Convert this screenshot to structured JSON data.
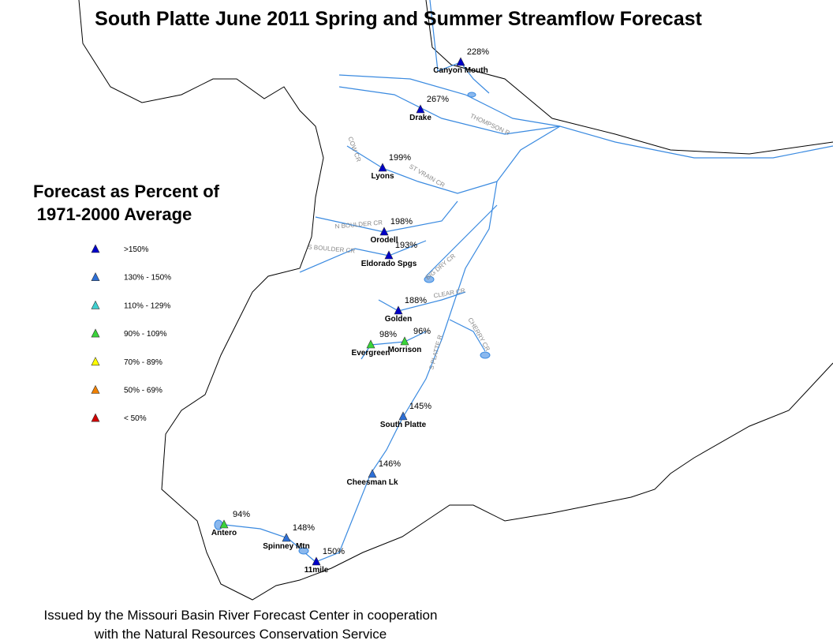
{
  "header": {
    "title": "South Platte June 2011 Spring and Summer Streamflow Forecast"
  },
  "legend": {
    "title_lines": [
      "Forecast as Percent of",
      "1971-2000 Average"
    ],
    "items": [
      {
        "label": ">150%",
        "color": "#0000c8"
      },
      {
        "label": "130% - 150%",
        "color": "#2d6fd6"
      },
      {
        "label": "110% - 129%",
        "color": "#3fd0d0"
      },
      {
        "label": "90% - 109%",
        "color": "#3ad43a"
      },
      {
        "label": "70% - 89%",
        "color": "#ffff00"
      },
      {
        "label": "50% - 69%",
        "color": "#f08000"
      },
      {
        "label": "< 50%",
        "color": "#d00000"
      }
    ]
  },
  "stations": [
    {
      "name": "Canyon Mouth",
      "percent": "228%",
      "color": "#0000c8"
    },
    {
      "name": "Drake",
      "percent": "267%",
      "color": "#0000c8"
    },
    {
      "name": "Lyons",
      "percent": "199%",
      "color": "#0000c8"
    },
    {
      "name": "Orodell",
      "percent": "198%",
      "color": "#0000c8"
    },
    {
      "name": "Eldorado Spgs",
      "percent": "193%",
      "color": "#0000c8"
    },
    {
      "name": "Golden",
      "percent": "188%",
      "color": "#0000c8"
    },
    {
      "name": "Evergreen",
      "percent": "98%",
      "color": "#3ad43a"
    },
    {
      "name": "Morrison",
      "percent": "96%",
      "color": "#3ad43a"
    },
    {
      "name": "South Platte",
      "percent": "145%",
      "color": "#2d6fd6"
    },
    {
      "name": "Cheesman Lk",
      "percent": "146%",
      "color": "#2d6fd6"
    },
    {
      "name": "Antero",
      "percent": "94%",
      "color": "#3ad43a"
    },
    {
      "name": "Spinney Mtn",
      "percent": "148%",
      "color": "#2d6fd6"
    },
    {
      "name": "11mile",
      "percent": "150%",
      "color": "#0000c8"
    }
  ],
  "rivers": [
    "THOMPSON R",
    "COW CR",
    "ST VRAIN CR",
    "N BOULDER CR",
    "S BOULDER CR",
    "BIG DRY CR",
    "CLEAR CR",
    "CHERRY CR",
    "S PLATTE R"
  ],
  "footer": {
    "lines": [
      "Issued by the Missouri Basin River Forecast Center in cooperation",
      "with the Natural Resources Conservation Service"
    ]
  }
}
